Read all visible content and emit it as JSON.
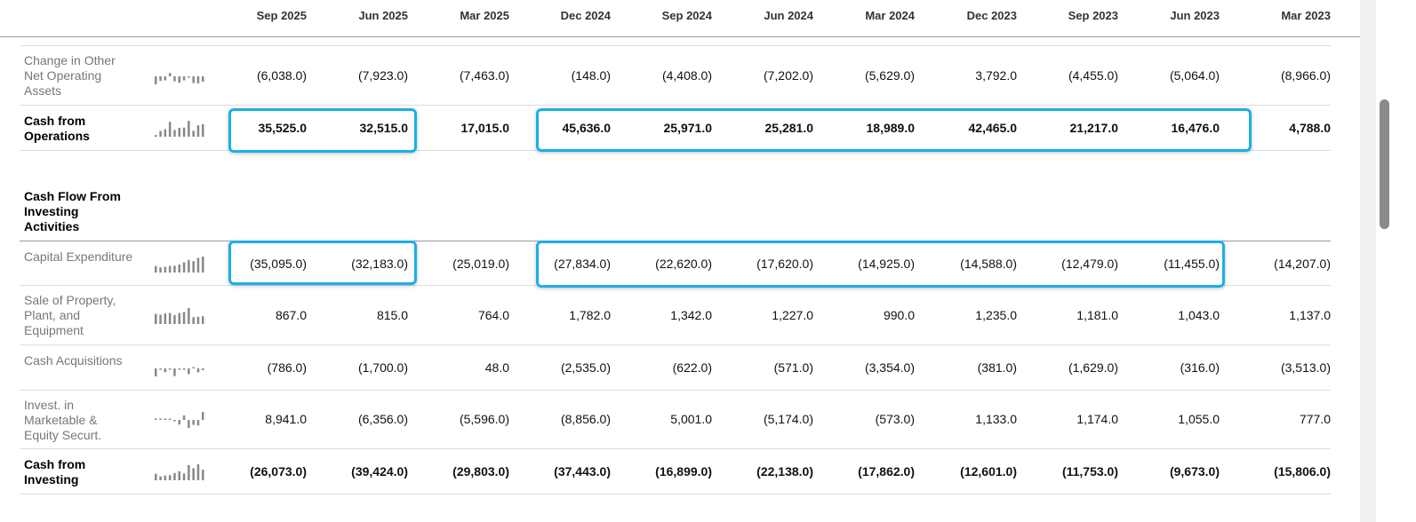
{
  "columns": [
    "Sep 2025",
    "Jun 2025",
    "Mar 2025",
    "Dec 2024",
    "Sep 2024",
    "Jun 2024",
    "Mar 2024",
    "Dec 2023",
    "Sep 2023",
    "Jun 2023",
    "Mar 2023"
  ],
  "section_title": "Cash Flow From Investing Activities",
  "rows": [
    {
      "label": "Change in Other Net Operating Assets",
      "bold": false,
      "values": [
        "(6,038.0)",
        "(7,923.0)",
        "(7,463.0)",
        "(148.0)",
        "(4,408.0)",
        "(7,202.0)",
        "(5,629.0)",
        "3,792.0",
        "(4,455.0)",
        "(5,064.0)",
        "(8,966.0)"
      ]
    },
    {
      "label": "Cash from Operations",
      "bold": true,
      "values": [
        "35,525.0",
        "32,515.0",
        "17,015.0",
        "45,636.0",
        "25,971.0",
        "25,281.0",
        "18,989.0",
        "42,465.0",
        "21,217.0",
        "16,476.0",
        "4,788.0"
      ]
    },
    {
      "label": "Capital Expenditure",
      "bold": false,
      "values": [
        "(35,095.0)",
        "(32,183.0)",
        "(25,019.0)",
        "(27,834.0)",
        "(22,620.0)",
        "(17,620.0)",
        "(14,925.0)",
        "(14,588.0)",
        "(12,479.0)",
        "(11,455.0)",
        "(14,207.0)"
      ]
    },
    {
      "label": "Sale of Property, Plant, and Equipment",
      "bold": false,
      "values": [
        "867.0",
        "815.0",
        "764.0",
        "1,782.0",
        "1,342.0",
        "1,227.0",
        "990.0",
        "1,235.0",
        "1,181.0",
        "1,043.0",
        "1,137.0"
      ]
    },
    {
      "label": "Cash Acquisitions",
      "bold": false,
      "values": [
        "(786.0)",
        "(1,700.0)",
        "48.0",
        "(2,535.0)",
        "(622.0)",
        "(571.0)",
        "(3,354.0)",
        "(381.0)",
        "(1,629.0)",
        "(316.0)",
        "(3,513.0)"
      ]
    },
    {
      "label": "Invest. in Marketable & Equity Securt.",
      "bold": false,
      "values": [
        "8,941.0",
        "(6,356.0)",
        "(5,596.0)",
        "(8,856.0)",
        "5,001.0",
        "(5,174.0)",
        "(573.0)",
        "1,133.0",
        "1,174.0",
        "1,055.0",
        "777.0"
      ]
    },
    {
      "label": "Cash from Investing",
      "bold": true,
      "values": [
        "(26,073.0)",
        "(39,424.0)",
        "(29,803.0)",
        "(37,443.0)",
        "(16,899.0)",
        "(22,138.0)",
        "(17,862.0)",
        "(12,601.0)",
        "(11,753.0)",
        "(9,673.0)",
        "(15,806.0)"
      ]
    }
  ],
  "colors": {
    "highlight": "#1ab0e8",
    "sparkline": "#888888"
  }
}
